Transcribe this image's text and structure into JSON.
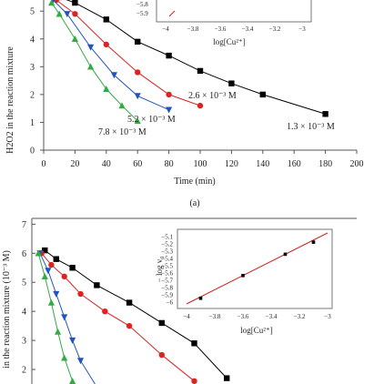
{
  "chart_data": [
    {
      "panel": "(a)",
      "type": "line",
      "xlabel": "Time (min)",
      "ylabel": "H2O2 in the reaction mixture",
      "xticks": [
        0,
        20,
        40,
        60,
        80,
        100,
        120,
        140,
        160,
        180,
        200
      ],
      "yticks": [
        0,
        1,
        2,
        3,
        4,
        5
      ],
      "xlim": [
        0,
        200
      ],
      "ylim": [
        0,
        5.4
      ],
      "series": [
        {
          "name": "1.3 × 10⁻³ M",
          "marker": "square",
          "color": "#000000",
          "x": [
            10,
            20,
            40,
            60,
            80,
            100,
            120,
            140,
            180
          ],
          "y": [
            5.5,
            5.3,
            4.7,
            3.9,
            3.4,
            2.85,
            2.4,
            2.0,
            1.3
          ]
        },
        {
          "name": "2.6 × 10⁻³ M",
          "marker": "circle",
          "color": "#dd2222",
          "x": [
            8,
            20,
            40,
            60,
            80,
            100
          ],
          "y": [
            5.4,
            4.9,
            3.8,
            2.8,
            2.0,
            1.6
          ]
        },
        {
          "name": "5.2 × 10⁻³ M",
          "marker": "triangle-down",
          "color": "#2255bb",
          "x": [
            6,
            15,
            30,
            45,
            60,
            80
          ],
          "y": [
            5.4,
            4.9,
            3.7,
            2.7,
            1.95,
            1.45
          ]
        },
        {
          "name": "7.8 × 10⁻³ M",
          "marker": "triangle-up",
          "color": "#33aa44",
          "x": [
            5,
            10,
            20,
            30,
            40,
            50,
            60
          ],
          "y": [
            5.3,
            4.9,
            4.0,
            3.0,
            2.2,
            1.6,
            1.05
          ]
        }
      ],
      "annotations": {
        "label_13": "1.3 × 10⁻³ M",
        "label_26": "2.6 × 10⁻³ M",
        "label_52": "5.2 × 10⁻³ M",
        "label_78": "7.8 × 10⁻³ M"
      }
    },
    {
      "panel": "(a) inset",
      "type": "scatter",
      "xlabel": "log[Cu²⁺]",
      "xticks": [
        "−4",
        "−3.8",
        "−3.6",
        "−3.4",
        "−3.2",
        "−3"
      ],
      "ytick_labels": [
        "−5.8",
        "−5.9"
      ]
    },
    {
      "panel": "(b)",
      "type": "line",
      "ylabel": "in the reaction mixture (10⁻³ M)",
      "yticks": [
        2,
        3,
        4,
        5,
        6,
        7
      ],
      "ylim": [
        1.5,
        7.2
      ],
      "series": [
        {
          "name": "black",
          "marker": "square",
          "color": "#000000",
          "x": [
            8,
            15,
            25,
            40,
            60,
            80,
            100,
            120
          ],
          "y": [
            6.1,
            5.8,
            5.5,
            4.9,
            4.3,
            3.6,
            2.9,
            1.7
          ]
        },
        {
          "name": "red",
          "marker": "circle",
          "color": "#dd2222",
          "x": [
            6,
            12,
            20,
            30,
            45,
            60,
            80,
            100
          ],
          "y": [
            6.0,
            5.6,
            5.2,
            4.6,
            4.0,
            3.5,
            2.5,
            1.6
          ]
        },
        {
          "name": "blue",
          "marker": "triangle-down",
          "color": "#2255bb",
          "x": [
            5,
            10,
            15,
            20,
            25,
            30,
            40
          ],
          "y": [
            6.0,
            5.4,
            4.6,
            3.8,
            3.0,
            2.3,
            1.4
          ]
        },
        {
          "name": "green",
          "marker": "triangle-up",
          "color": "#33aa44",
          "x": [
            4,
            8,
            12,
            16,
            20,
            25
          ],
          "y": [
            6.0,
            5.2,
            4.3,
            3.3,
            2.4,
            1.6
          ]
        }
      ]
    },
    {
      "panel": "(b) inset",
      "type": "scatter",
      "xlabel": "log[Cu²⁺]",
      "ylabel": "− log v₀",
      "xticks": [
        "−4",
        "−3.8",
        "−3.6",
        "−3.4",
        "−3.2",
        "−3"
      ],
      "yticks": [
        "−5.1",
        "−5.2",
        "−5.3",
        "−5.4",
        "−5.5",
        "−5.6",
        "−5.7",
        "−5.8",
        "−5.9",
        "−6"
      ],
      "xlim": [
        -4,
        -3
      ],
      "ylim": [
        -6.05,
        -5.05
      ],
      "points": {
        "x": [
          -3.9,
          -3.6,
          -3.3,
          -3.1
        ],
        "y": [
          -5.97,
          -5.65,
          -5.35,
          -5.18
        ]
      },
      "fit_line": {
        "x": [
          -4,
          -3
        ],
        "y": [
          -6.05,
          -5.05
        ]
      }
    }
  ],
  "panel_label_a": "(a)",
  "colors": {
    "black": "#000000",
    "red": "#dd2222",
    "blue": "#2255bb",
    "green": "#33aa44",
    "fit": "#cc2222"
  }
}
